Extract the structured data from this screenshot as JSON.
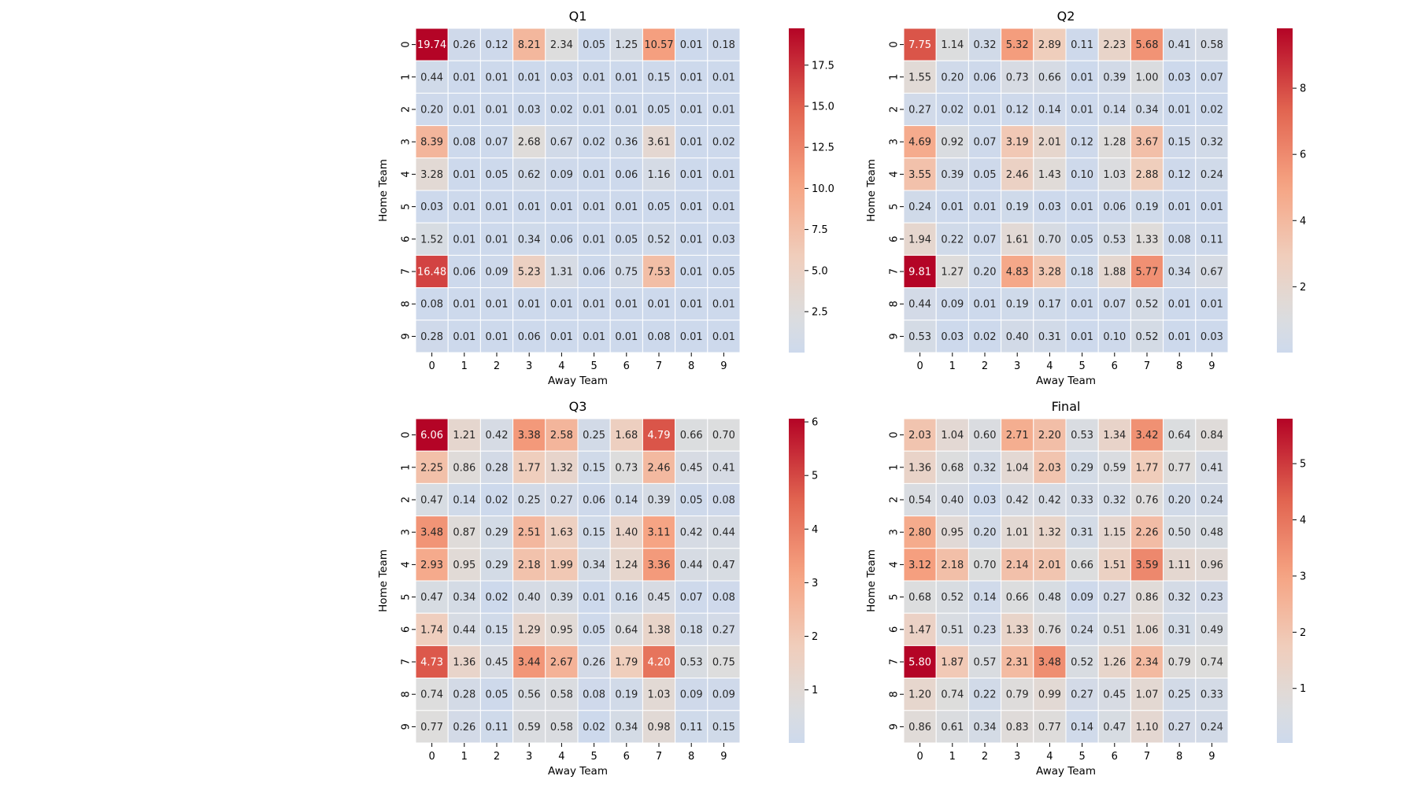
{
  "chart_data": [
    {
      "type": "heatmap",
      "title": "Q1",
      "xlabel": "Away Team",
      "ylabel": "Home Team",
      "x_categories": [
        "0",
        "1",
        "2",
        "3",
        "4",
        "5",
        "6",
        "7",
        "8",
        "9"
      ],
      "y_categories": [
        "0",
        "1",
        "2",
        "3",
        "4",
        "5",
        "6",
        "7",
        "8",
        "9"
      ],
      "colormap": "coolwarm",
      "color_range": [
        0.01,
        19.74
      ],
      "colorbar_ticks": [
        2.5,
        5.0,
        7.5,
        10.0,
        12.5,
        15.0,
        17.5
      ],
      "colorbar_tick_labels": [
        "2.5",
        "5.0",
        "7.5",
        "10.0",
        "12.5",
        "15.0",
        "17.5"
      ],
      "values": [
        [
          "19.74",
          "0.26",
          "0.12",
          "8.21",
          "2.34",
          "0.05",
          "1.25",
          "10.57",
          "0.01",
          "0.18"
        ],
        [
          "0.44",
          "0.01",
          "0.01",
          "0.01",
          "0.03",
          "0.01",
          "0.01",
          "0.15",
          "0.01",
          "0.01"
        ],
        [
          "0.20",
          "0.01",
          "0.01",
          "0.03",
          "0.02",
          "0.01",
          "0.01",
          "0.05",
          "0.01",
          "0.01"
        ],
        [
          "8.39",
          "0.08",
          "0.07",
          "2.68",
          "0.67",
          "0.02",
          "0.36",
          "3.61",
          "0.01",
          "0.02"
        ],
        [
          "3.28",
          "0.01",
          "0.05",
          "0.62",
          "0.09",
          "0.01",
          "0.06",
          "1.16",
          "0.01",
          "0.01"
        ],
        [
          "0.03",
          "0.01",
          "0.01",
          "0.01",
          "0.01",
          "0.01",
          "0.01",
          "0.05",
          "0.01",
          "0.01"
        ],
        [
          "1.52",
          "0.01",
          "0.01",
          "0.34",
          "0.06",
          "0.01",
          "0.05",
          "0.52",
          "0.01",
          "0.03"
        ],
        [
          "16.48",
          "0.06",
          "0.09",
          "5.23",
          "1.31",
          "0.06",
          "0.75",
          "7.53",
          "0.01",
          "0.05"
        ],
        [
          "0.08",
          "0.01",
          "0.01",
          "0.01",
          "0.01",
          "0.01",
          "0.01",
          "0.01",
          "0.01",
          "0.01"
        ],
        [
          "0.28",
          "0.01",
          "0.01",
          "0.06",
          "0.01",
          "0.01",
          "0.01",
          "0.08",
          "0.01",
          "0.01"
        ]
      ]
    },
    {
      "type": "heatmap",
      "title": "Q2",
      "xlabel": "Away Team",
      "ylabel": "Home Team",
      "x_categories": [
        "0",
        "1",
        "2",
        "3",
        "4",
        "5",
        "6",
        "7",
        "8",
        "9"
      ],
      "y_categories": [
        "0",
        "1",
        "2",
        "3",
        "4",
        "5",
        "6",
        "7",
        "8",
        "9"
      ],
      "colormap": "coolwarm",
      "color_range": [
        0.01,
        9.81
      ],
      "colorbar_ticks": [
        2,
        4,
        6,
        8
      ],
      "colorbar_tick_labels": [
        "2",
        "4",
        "6",
        "8"
      ],
      "values": [
        [
          "7.75",
          "1.14",
          "0.32",
          "5.32",
          "2.89",
          "0.11",
          "2.23",
          "5.68",
          "0.41",
          "0.58"
        ],
        [
          "1.55",
          "0.20",
          "0.06",
          "0.73",
          "0.66",
          "0.01",
          "0.39",
          "1.00",
          "0.03",
          "0.07"
        ],
        [
          "0.27",
          "0.02",
          "0.01",
          "0.12",
          "0.14",
          "0.01",
          "0.14",
          "0.34",
          "0.01",
          "0.02"
        ],
        [
          "4.69",
          "0.92",
          "0.07",
          "3.19",
          "2.01",
          "0.12",
          "1.28",
          "3.67",
          "0.15",
          "0.32"
        ],
        [
          "3.55",
          "0.39",
          "0.05",
          "2.46",
          "1.43",
          "0.10",
          "1.03",
          "2.88",
          "0.12",
          "0.24"
        ],
        [
          "0.24",
          "0.01",
          "0.01",
          "0.19",
          "0.03",
          "0.01",
          "0.06",
          "0.19",
          "0.01",
          "0.01"
        ],
        [
          "1.94",
          "0.22",
          "0.07",
          "1.61",
          "0.70",
          "0.05",
          "0.53",
          "1.33",
          "0.08",
          "0.11"
        ],
        [
          "9.81",
          "1.27",
          "0.20",
          "4.83",
          "3.28",
          "0.18",
          "1.88",
          "5.77",
          "0.34",
          "0.67"
        ],
        [
          "0.44",
          "0.09",
          "0.01",
          "0.19",
          "0.17",
          "0.01",
          "0.07",
          "0.52",
          "0.01",
          "0.01"
        ],
        [
          "0.53",
          "0.03",
          "0.02",
          "0.40",
          "0.31",
          "0.01",
          "0.10",
          "0.52",
          "0.01",
          "0.03"
        ]
      ]
    },
    {
      "type": "heatmap",
      "title": "Q3",
      "xlabel": "Away Team",
      "ylabel": "Home Team",
      "x_categories": [
        "0",
        "1",
        "2",
        "3",
        "4",
        "5",
        "6",
        "7",
        "8",
        "9"
      ],
      "y_categories": [
        "0",
        "1",
        "2",
        "3",
        "4",
        "5",
        "6",
        "7",
        "8",
        "9"
      ],
      "colormap": "coolwarm",
      "color_range": [
        0.01,
        6.06
      ],
      "colorbar_ticks": [
        1,
        2,
        3,
        4,
        5,
        6
      ],
      "colorbar_tick_labels": [
        "1",
        "2",
        "3",
        "4",
        "5",
        "6"
      ],
      "values": [
        [
          "6.06",
          "1.21",
          "0.42",
          "3.38",
          "2.58",
          "0.25",
          "1.68",
          "4.79",
          "0.66",
          "0.70"
        ],
        [
          "2.25",
          "0.86",
          "0.28",
          "1.77",
          "1.32",
          "0.15",
          "0.73",
          "2.46",
          "0.45",
          "0.41"
        ],
        [
          "0.47",
          "0.14",
          "0.02",
          "0.25",
          "0.27",
          "0.06",
          "0.14",
          "0.39",
          "0.05",
          "0.08"
        ],
        [
          "3.48",
          "0.87",
          "0.29",
          "2.51",
          "1.63",
          "0.15",
          "1.40",
          "3.11",
          "0.42",
          "0.44"
        ],
        [
          "2.93",
          "0.95",
          "0.29",
          "2.18",
          "1.99",
          "0.34",
          "1.24",
          "3.36",
          "0.44",
          "0.47"
        ],
        [
          "0.47",
          "0.34",
          "0.02",
          "0.40",
          "0.39",
          "0.01",
          "0.16",
          "0.45",
          "0.07",
          "0.08"
        ],
        [
          "1.74",
          "0.44",
          "0.15",
          "1.29",
          "0.95",
          "0.05",
          "0.64",
          "1.38",
          "0.18",
          "0.27"
        ],
        [
          "4.73",
          "1.36",
          "0.45",
          "3.44",
          "2.67",
          "0.26",
          "1.79",
          "4.20",
          "0.53",
          "0.75"
        ],
        [
          "0.74",
          "0.28",
          "0.05",
          "0.56",
          "0.58",
          "0.08",
          "0.19",
          "1.03",
          "0.09",
          "0.09"
        ],
        [
          "0.77",
          "0.26",
          "0.11",
          "0.59",
          "0.58",
          "0.02",
          "0.34",
          "0.98",
          "0.11",
          "0.15"
        ]
      ]
    },
    {
      "type": "heatmap",
      "title": "Final",
      "xlabel": "Away Team",
      "ylabel": "Home Team",
      "x_categories": [
        "0",
        "1",
        "2",
        "3",
        "4",
        "5",
        "6",
        "7",
        "8",
        "9"
      ],
      "y_categories": [
        "0",
        "1",
        "2",
        "3",
        "4",
        "5",
        "6",
        "7",
        "8",
        "9"
      ],
      "colormap": "coolwarm",
      "color_range": [
        0.03,
        5.8
      ],
      "colorbar_ticks": [
        1,
        2,
        3,
        4,
        5
      ],
      "colorbar_tick_labels": [
        "1",
        "2",
        "3",
        "4",
        "5"
      ],
      "values": [
        [
          "2.03",
          "1.04",
          "0.60",
          "2.71",
          "2.20",
          "0.53",
          "1.34",
          "3.42",
          "0.64",
          "0.84"
        ],
        [
          "1.36",
          "0.68",
          "0.32",
          "1.04",
          "2.03",
          "0.29",
          "0.59",
          "1.77",
          "0.77",
          "0.41"
        ],
        [
          "0.54",
          "0.40",
          "0.03",
          "0.42",
          "0.42",
          "0.33",
          "0.32",
          "0.76",
          "0.20",
          "0.24"
        ],
        [
          "2.80",
          "0.95",
          "0.20",
          "1.01",
          "1.32",
          "0.31",
          "1.15",
          "2.26",
          "0.50",
          "0.48"
        ],
        [
          "3.12",
          "2.18",
          "0.70",
          "2.14",
          "2.01",
          "0.66",
          "1.51",
          "3.59",
          "1.11",
          "0.96"
        ],
        [
          "0.68",
          "0.52",
          "0.14",
          "0.66",
          "0.48",
          "0.09",
          "0.27",
          "0.86",
          "0.32",
          "0.23"
        ],
        [
          "1.47",
          "0.51",
          "0.23",
          "1.33",
          "0.76",
          "0.24",
          "0.51",
          "1.06",
          "0.31",
          "0.49"
        ],
        [
          "5.80",
          "1.87",
          "0.57",
          "2.31",
          "3.48",
          "0.52",
          "1.26",
          "2.34",
          "0.79",
          "0.74"
        ],
        [
          "1.20",
          "0.74",
          "0.22",
          "0.79",
          "0.99",
          "0.27",
          "0.45",
          "1.07",
          "0.25",
          "0.33"
        ],
        [
          "0.86",
          "0.61",
          "0.34",
          "0.83",
          "0.77",
          "0.14",
          "0.47",
          "1.10",
          "0.27",
          "0.24"
        ]
      ]
    }
  ]
}
